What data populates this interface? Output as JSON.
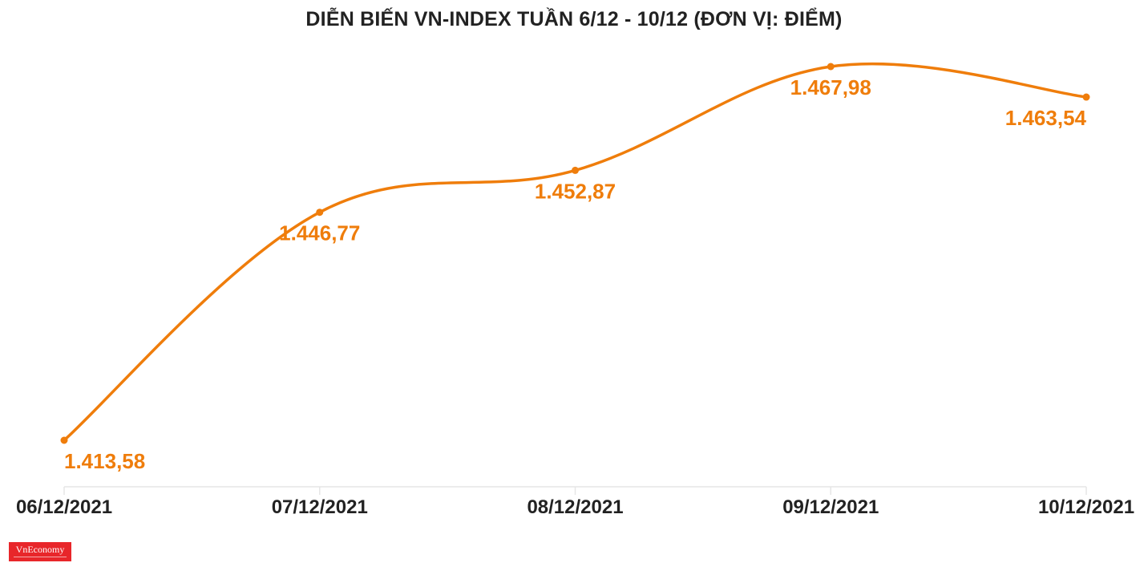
{
  "title": "DIỄN BIẾN VN-INDEX TUẦN 6/12 - 10/12 (ĐƠN VỊ: ĐIỂM)",
  "logo_text": "VnEconomy",
  "colors": {
    "line": "#ef7d0b",
    "label": "#ef7d0b",
    "axis_text": "#222222",
    "grid": "#e6e6e6"
  },
  "chart_data": {
    "type": "line",
    "title": "DIỄN BIẾN VN-INDEX TUẦN 6/12 - 10/12 (ĐƠN VỊ: ĐIỂM)",
    "categories": [
      "06/12/2021",
      "07/12/2021",
      "08/12/2021",
      "09/12/2021",
      "10/12/2021"
    ],
    "series": [
      {
        "values": [
          1413.58,
          1446.77,
          1452.87,
          1467.98,
          1463.54
        ],
        "labels": [
          "1.413,58",
          "1.446,77",
          "1.452,87",
          "1.467,98",
          "1.463,54"
        ]
      }
    ],
    "xlabel": "",
    "ylabel": "",
    "grid": false,
    "curve": "smooth"
  }
}
